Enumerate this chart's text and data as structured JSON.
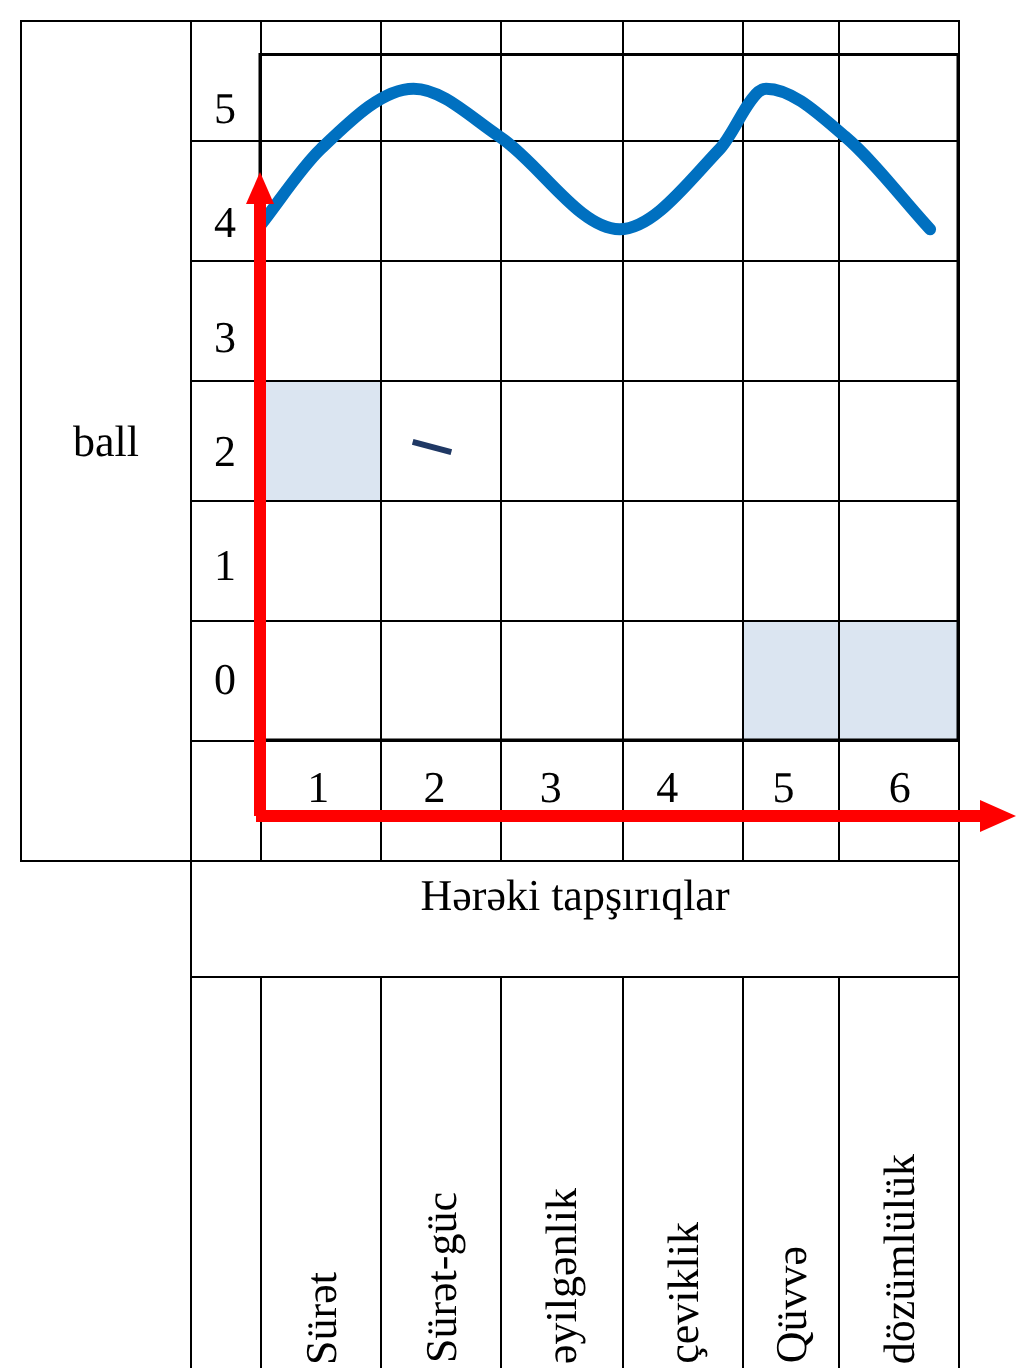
{
  "chart_data": {
    "type": "line",
    "xlabel": "Hərəki tapşırıqlar",
    "ylabel": "ball",
    "x": [
      0.5,
      1.02,
      1.82,
      2.56,
      3.59,
      4.45,
      4.85,
      5.53,
      6.26
    ],
    "series": [
      {
        "color": "#0070c0",
        "values": [
          4.0,
          4.67,
          5.2,
          4.78,
          3.97,
          4.67,
          5.2,
          4.78,
          3.97
        ]
      }
    ],
    "xlim": [
      0.5,
      6.5
    ],
    "xticks": [
      1,
      2,
      3,
      4,
      5,
      6
    ],
    "ylim": [
      -0.5,
      5.5
    ],
    "yticks": [
      0,
      1,
      2,
      3,
      4,
      5
    ],
    "marker": "none",
    "line_style": "solid",
    "annotations": [
      "Sürət",
      "Sürət-güc",
      "əyilgənlik",
      "çeviklik",
      "Qüvvə",
      "dözümlülük"
    ]
  }
}
